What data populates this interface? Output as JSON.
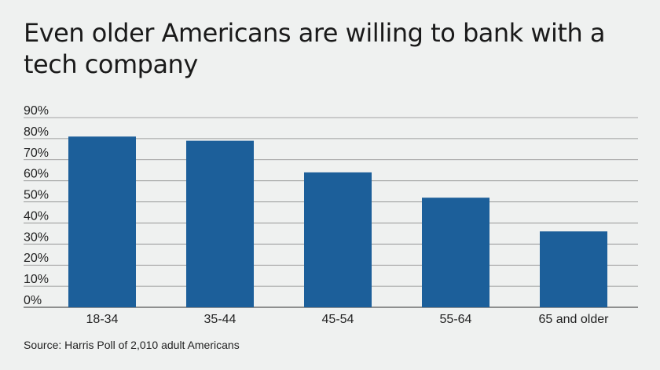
{
  "chart_data": {
    "type": "bar",
    "title": "Even older Americans are willing to bank with a tech company",
    "categories": [
      "18-34",
      "35-44",
      "45-54",
      "55-64",
      "65 and older"
    ],
    "values": [
      81,
      79,
      64,
      52,
      36
    ],
    "y_ticks": [
      "0%",
      "10%",
      "20%",
      "30%",
      "40%",
      "50%",
      "60%",
      "70%",
      "80%",
      "90%"
    ],
    "ylim": [
      0,
      90
    ],
    "grid": true,
    "bar_color": "#1c5f9a",
    "source": "Source: Harris Poll of 2,010 adult Americans"
  }
}
